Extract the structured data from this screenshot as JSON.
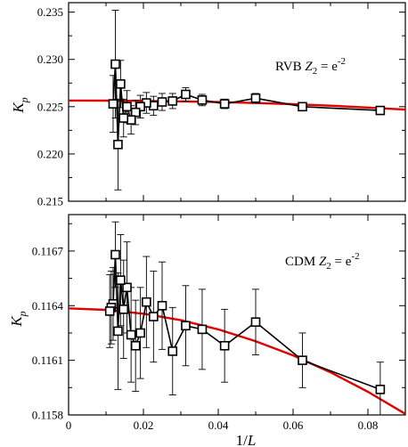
{
  "chart_data": [
    {
      "type": "line",
      "panel": "top",
      "annotation": {
        "prefix": "RVB ",
        "var": "Z",
        "sub": "2",
        "eq": " = e",
        "sup": "-2"
      },
      "ylabel": {
        "main": "K",
        "sub": "p"
      },
      "xlabel": "",
      "xlim": [
        0,
        0.09
      ],
      "ylim": [
        0.215,
        0.236
      ],
      "xticks": [
        0,
        0.02,
        0.04,
        0.06,
        0.08
      ],
      "yticks": [
        0.215,
        0.22,
        0.225,
        0.23,
        0.235
      ],
      "ytick_labels": [
        "0.215",
        "0.220",
        "0.225",
        "0.230",
        "0.235"
      ],
      "grid": false,
      "series": [
        {
          "style": "black line with open square markers and error bars",
          "color": "#000000",
          "x": [
            0.0833,
            0.0625,
            0.05,
            0.0417,
            0.0357,
            0.0313,
            0.0278,
            0.025,
            0.0227,
            0.0208,
            0.0192,
            0.0179,
            0.0167,
            0.0156,
            0.0147,
            0.0139,
            0.0132,
            0.0125,
            0.0119
          ],
          "y": [
            0.2246,
            0.225,
            0.2259,
            0.2253,
            0.2257,
            0.2263,
            0.2256,
            0.2255,
            0.2251,
            0.2254,
            0.225,
            0.2244,
            0.2236,
            0.225,
            0.2238,
            0.2274,
            0.221,
            0.2295,
            0.2253
          ],
          "yerr": [
            0.0003,
            0.0004,
            0.0005,
            0.0005,
            0.0006,
            0.0007,
            0.0008,
            0.0009,
            0.001,
            0.0011,
            0.0012,
            0.0013,
            0.0015,
            0.0017,
            0.002,
            0.0025,
            0.0048,
            0.0057,
            0.003
          ]
        },
        {
          "style": "red fit curve",
          "color": "#e00000",
          "x": [
            0,
            0.01,
            0.02,
            0.03,
            0.04,
            0.05,
            0.06,
            0.07,
            0.08,
            0.09
          ],
          "y": [
            0.22565,
            0.22564,
            0.22561,
            0.22556,
            0.22549,
            0.22539,
            0.22526,
            0.2251,
            0.22491,
            0.22469
          ]
        }
      ]
    },
    {
      "type": "line",
      "panel": "bottom",
      "annotation": {
        "prefix": "CDM ",
        "var": "Z",
        "sub": "2",
        "eq": " = e",
        "sup": "-2"
      },
      "ylabel": {
        "main": "K",
        "sub": "p"
      },
      "xlabel": "1/L",
      "xlim": [
        0,
        0.09
      ],
      "ylim": [
        0.1158,
        0.1169
      ],
      "xticks": [
        0,
        0.02,
        0.04,
        0.06,
        0.08
      ],
      "xtick_labels": [
        "0",
        "0.02",
        "0.04",
        "0.06",
        "0.08"
      ],
      "yticks": [
        0.1158,
        0.1161,
        0.1164,
        0.1167
      ],
      "ytick_labels": [
        "0.1158",
        "0.1161",
        "0.1164",
        "0.1167"
      ],
      "grid": false,
      "series": [
        {
          "style": "black line with open square markers and error bars",
          "color": "#000000",
          "x": [
            0.0833,
            0.0625,
            0.05,
            0.0417,
            0.0357,
            0.0313,
            0.0278,
            0.025,
            0.0227,
            0.0208,
            0.0192,
            0.0179,
            0.0167,
            0.0156,
            0.0147,
            0.0139,
            0.0132,
            0.0125,
            0.0119,
            0.0114,
            0.011
          ],
          "y": [
            0.11594,
            0.1161,
            0.11631,
            0.11618,
            0.11627,
            0.11629,
            0.11615,
            0.1164,
            0.11634,
            0.11642,
            0.11625,
            0.11618,
            0.11624,
            0.1165,
            0.11638,
            0.11654,
            0.11626,
            0.11668,
            0.11641,
            0.11639,
            0.11637
          ],
          "yerr": [
            0.00015,
            0.00015,
            0.00018,
            0.0002,
            0.00022,
            0.00022,
            0.00024,
            0.00024,
            0.00025,
            0.00025,
            0.00025,
            0.00025,
            0.00026,
            0.00025,
            0.00027,
            0.00025,
            0.00032,
            0.00018,
            0.0002,
            0.0002,
            0.0002
          ]
        },
        {
          "style": "red fit curve",
          "color": "#e00000",
          "x": [
            0,
            0.01,
            0.02,
            0.03,
            0.04,
            0.05,
            0.06,
            0.07,
            0.08,
            0.09
          ],
          "y": [
            0.116385,
            0.116377,
            0.116356,
            0.11632,
            0.11627,
            0.116205,
            0.116127,
            0.116034,
            0.115927,
            0.115806
          ]
        }
      ]
    }
  ]
}
